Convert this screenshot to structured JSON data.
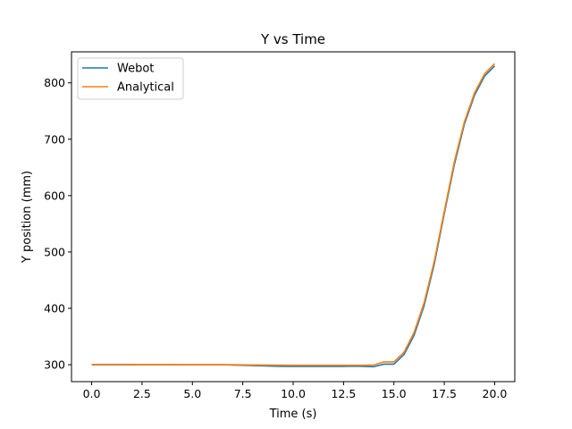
{
  "chart_data": {
    "type": "line",
    "title": "Y vs Time",
    "xlabel": "Time (s)",
    "ylabel": "Y position (mm)",
    "xlim": [
      -1.0,
      21.0
    ],
    "ylim": [
      270,
      855
    ],
    "xticks": [
      0.0,
      2.5,
      5.0,
      7.5,
      10.0,
      12.5,
      15.0,
      17.5,
      20.0
    ],
    "xtick_labels": [
      "0.0",
      "2.5",
      "5.0",
      "7.5",
      "10.0",
      "12.5",
      "15.0",
      "17.5",
      "20.0"
    ],
    "yticks": [
      300,
      400,
      500,
      600,
      700,
      800
    ],
    "ytick_labels": [
      "300",
      "400",
      "500",
      "600",
      "700",
      "800"
    ],
    "grid": false,
    "legend_position": "top-left",
    "series": [
      {
        "name": "Webot",
        "color": "#1f77b4",
        "x": [
          0.0,
          0.5,
          1.0,
          1.5,
          2.0,
          2.5,
          3.0,
          3.5,
          4.0,
          4.5,
          5.0,
          5.5,
          6.0,
          6.5,
          7.0,
          7.5,
          8.0,
          8.5,
          9.0,
          9.5,
          10.0,
          10.5,
          11.0,
          11.5,
          12.0,
          12.5,
          13.0,
          13.5,
          14.0,
          14.5,
          15.0,
          15.5,
          16.0,
          16.5,
          17.0,
          17.5,
          18.0,
          18.5,
          19.0,
          19.5,
          20.0
        ],
        "values": [
          300,
          300,
          300,
          300,
          300,
          300,
          300,
          300,
          300,
          300,
          300,
          300,
          300,
          300,
          299.5,
          299,
          298.5,
          298,
          297.5,
          297,
          297,
          297,
          297,
          297,
          297,
          297,
          297.5,
          297,
          296.5,
          301,
          301,
          318,
          352,
          405,
          478,
          568,
          655,
          727,
          778,
          812,
          830
        ]
      },
      {
        "name": "Analytical",
        "color": "#ff7f0e",
        "x": [
          0.0,
          0.5,
          1.0,
          1.5,
          2.0,
          2.5,
          3.0,
          3.5,
          4.0,
          4.5,
          5.0,
          5.5,
          6.0,
          6.5,
          7.0,
          7.5,
          8.0,
          8.5,
          9.0,
          9.5,
          10.0,
          10.5,
          11.0,
          11.5,
          12.0,
          12.5,
          13.0,
          13.5,
          14.0,
          14.5,
          15.0,
          15.5,
          16.0,
          16.5,
          17.0,
          17.5,
          18.0,
          18.5,
          19.0,
          19.5,
          20.0
        ],
        "values": [
          300.5,
          300.5,
          300.5,
          300.5,
          300.5,
          300.3,
          300.3,
          300.3,
          300.2,
          300,
          300,
          300,
          300,
          300,
          300,
          299.8,
          299.5,
          299.5,
          299.3,
          299.2,
          299,
          299,
          299,
          299,
          299,
          299,
          299,
          299,
          299.5,
          305,
          305,
          322,
          357,
          410,
          483,
          572,
          660,
          731,
          782,
          816,
          834
        ]
      }
    ]
  }
}
